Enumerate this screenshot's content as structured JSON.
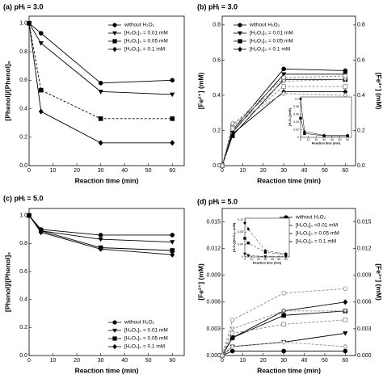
{
  "chart_data": [
    {
      "type": "line",
      "title": "(a) pHᵢ = 3.0",
      "xlabel": "Reaction time (min)",
      "ylabel": "[Phenol]/[Phenol]₀",
      "xlim": [
        0,
        65
      ],
      "xticks": [
        0,
        10,
        20,
        30,
        40,
        50,
        60
      ],
      "ylim": [
        0,
        1.05
      ],
      "yticks": [
        {
          "value": 0,
          "label": "0.0"
        },
        0.2,
        0.4,
        0.6,
        0.8,
        {
          "value": 1,
          "label": "1.0"
        }
      ],
      "legend": "upper right",
      "x": [
        0,
        5,
        30,
        60
      ],
      "series": [
        {
          "name": "without H₂O₂",
          "marker": "circle",
          "color": "#000",
          "linestyle": "solid",
          "values": [
            1,
            0.93,
            0.58,
            0.6
          ]
        },
        {
          "name": "[H₂O₂]₀ = 0.01 mM",
          "marker": "triangle",
          "color": "#000",
          "linestyle": "solid",
          "values": [
            1,
            0.86,
            0.52,
            0.5
          ]
        },
        {
          "name": "[H₂O₂]₀ = 0.05 mM",
          "marker": "square",
          "color": "#000",
          "linestyle": "dashed",
          "values": [
            1,
            0.53,
            0.33,
            0.33
          ]
        },
        {
          "name": "[H₂O₂]₀ = 0.1 mM",
          "marker": "diamond",
          "color": "#000",
          "linestyle": "solid",
          "values": [
            1,
            0.38,
            0.16,
            0.16
          ]
        }
      ]
    },
    {
      "type": "line",
      "title": "(b) pHᵢ = 3.0",
      "xlabel": "Reaction time (min)",
      "ylabel": "[Fe²⁺] (mM)",
      "y2label": "[Fe³⁺] (mM)",
      "xlim": [
        0,
        65
      ],
      "xticks": [
        0,
        10,
        20,
        30,
        40,
        50,
        60
      ],
      "ylim": [
        0,
        0.85
      ],
      "yticks": [
        {
          "value": 0,
          "label": "0.0"
        },
        0.2,
        0.4,
        0.6,
        0.8
      ],
      "y2lim": [
        0,
        0.85
      ],
      "y2ticks": [
        {
          "value": 0,
          "label": "0.0"
        },
        0.2,
        0.4,
        0.6,
        0.8
      ],
      "legend": "upper left",
      "x": [
        0,
        5,
        30,
        60
      ],
      "series": [
        {
          "name": "without H₂O₂",
          "marker": "circle",
          "color": "#000",
          "linestyle": "solid",
          "values": [
            0,
            0.2,
            0.55,
            0.54
          ]
        },
        {
          "name": "[H₂O₂]₀ = 0.01 mM",
          "marker": "triangle",
          "color": "#000",
          "linestyle": "solid",
          "values": [
            0,
            0.19,
            0.52,
            0.52
          ]
        },
        {
          "name": "[H₂O₂]₀ = 0.05 mM",
          "marker": "square",
          "color": "#000",
          "linestyle": "solid",
          "values": [
            0,
            0.17,
            0.49,
            0.49
          ]
        },
        {
          "name": "[H₂O₂]₀ = 0.1 mM",
          "marker": "diamond",
          "color": "#000",
          "linestyle": "solid",
          "values": [
            0,
            0.18,
            0.42,
            0.42
          ]
        },
        {
          "axis": "y2",
          "marker": "circle-open",
          "color": "#888",
          "linestyle": "dashed",
          "values": [
            0,
            0.23,
            0.5,
            0.51
          ]
        },
        {
          "axis": "y2",
          "marker": "triangle-open",
          "color": "#888",
          "linestyle": "dashed",
          "values": [
            0,
            0.22,
            0.48,
            0.49
          ]
        },
        {
          "axis": "y2",
          "marker": "square-open",
          "color": "#888",
          "linestyle": "dashed",
          "values": [
            0,
            0.21,
            0.45,
            0.45
          ]
        },
        {
          "axis": "y2",
          "marker": "diamond-open",
          "color": "#888",
          "linestyle": "dashed",
          "values": [
            0,
            0.24,
            0.41,
            0.4
          ]
        }
      ]
    },
    {
      "type": "line",
      "title": "(c) pHᵢ = 5.0",
      "xlabel": "Reaction time (min)",
      "ylabel": "[Phenol]/[Phenol]₀",
      "xlim": [
        0,
        65
      ],
      "xticks": [
        0,
        10,
        20,
        30,
        40,
        50,
        60
      ],
      "ylim": [
        0,
        1.05
      ],
      "yticks": [
        {
          "value": 0,
          "label": "0.0"
        },
        0.2,
        0.4,
        0.6,
        0.8,
        {
          "value": 1,
          "label": "1.0"
        }
      ],
      "legend": "lower right",
      "x": [
        0,
        5,
        30,
        60
      ],
      "series": [
        {
          "name": "without H₂O₂",
          "marker": "circle",
          "color": "#000",
          "linestyle": "solid",
          "values": [
            1,
            0.9,
            0.86,
            0.86
          ]
        },
        {
          "name": "[H₂O₂]₀ = 0.01 mM",
          "marker": "triangle",
          "color": "#000",
          "linestyle": "solid",
          "values": [
            1,
            0.89,
            0.83,
            0.81
          ]
        },
        {
          "name": "[H₂O₂]₀ = 0.05 mM",
          "marker": "square",
          "color": "#000",
          "linestyle": "solid",
          "values": [
            1,
            0.89,
            0.77,
            0.75
          ]
        },
        {
          "name": "[H₂O₂]₀ = 0.1 mM",
          "marker": "diamond",
          "color": "#000",
          "linestyle": "solid",
          "values": [
            1,
            0.88,
            0.76,
            0.72
          ]
        }
      ]
    },
    {
      "type": "line",
      "title": "(d) pHᵢ = 5.0",
      "xlabel": "Reaction time (min)",
      "ylabel": "[Fe²⁺] (mM)",
      "y2label": "[Fe³⁺] (mM)",
      "xlim": [
        0,
        65
      ],
      "xticks": [
        0,
        10,
        20,
        30,
        40,
        50,
        60
      ],
      "ylim": [
        0,
        0.0165
      ],
      "yticks": [
        {
          "value": 0,
          "label": "0.000"
        },
        0.003,
        0.006,
        0.009,
        0.012,
        0.015
      ],
      "y2lim": [
        0,
        0.0165
      ],
      "y2ticks": [
        {
          "value": 0,
          "label": "0.000"
        },
        0.003,
        0.006,
        0.009,
        0.012,
        0.015
      ],
      "legend": "upper right",
      "x": [
        0,
        5,
        30,
        60
      ],
      "series": [
        {
          "name": "without H₂O₂",
          "marker": "circle",
          "color": "#000",
          "linestyle": "solid",
          "values": [
            0,
            0.0005,
            0.0005,
            0.0005
          ]
        },
        {
          "name": "[H₂O₂]₀ =0.01 mM",
          "marker": "triangle",
          "color": "#000",
          "linestyle": "solid",
          "values": [
            0,
            0.001,
            0.0015,
            0.0025
          ]
        },
        {
          "name": "[H₂O₂]₀ = 0.05 mM",
          "marker": "square",
          "color": "#000",
          "linestyle": "solid",
          "values": [
            0,
            0.002,
            0.0045,
            0.005
          ]
        },
        {
          "name": "[H₂O₂]₀ = 0.1 mM",
          "marker": "diamond",
          "color": "#000",
          "linestyle": "solid",
          "values": [
            0,
            0.002,
            0.005,
            0.006
          ]
        },
        {
          "axis": "y2",
          "marker": "circle-open",
          "color": "#888",
          "linestyle": "dashed",
          "values": [
            0,
            0.004,
            0.007,
            0.0075
          ]
        },
        {
          "axis": "y2",
          "marker": "triangle-open",
          "color": "#888",
          "linestyle": "dashed",
          "values": [
            0,
            0.003,
            0.005,
            0.005
          ]
        },
        {
          "axis": "y2",
          "marker": "square-open",
          "color": "#888",
          "linestyle": "dashed",
          "values": [
            0,
            0.0025,
            0.0035,
            0.004
          ]
        },
        {
          "axis": "y2",
          "marker": "diamond-open",
          "color": "#888",
          "linestyle": "dashed",
          "values": [
            0,
            0.001,
            0.0015,
            0.001
          ]
        }
      ]
    },
    {
      "type": "line",
      "xlabel": "Reaction time (min)",
      "ylabel": "[H₂O₂] (mM)",
      "xlim": [
        0,
        65
      ],
      "xticks": [
        0,
        10,
        20,
        30,
        40,
        50,
        60
      ],
      "ylim": [
        0,
        0.105
      ],
      "yticks": [
        0,
        0.02,
        0.04,
        0.06,
        0.08,
        0.1
      ],
      "x": [
        0,
        5,
        30,
        60
      ],
      "series": [
        {
          "marker": "diamond",
          "color": "#000",
          "linestyle": "solid",
          "values": [
            0.1,
            0.015,
            0.005,
            0.005
          ]
        },
        {
          "marker": "square",
          "color": "#000",
          "linestyle": "solid",
          "values": [
            0.05,
            0.01,
            0.004,
            0.004
          ]
        }
      ]
    },
    {
      "type": "line",
      "xlabel": "Reaction time (min)",
      "ylabel": "[H₂O₂]/[H₂O₂]₀ (mM)",
      "xlim": [
        0,
        65
      ],
      "xticks": [
        0,
        10,
        20,
        30,
        40,
        50,
        60
      ],
      "ylim": [
        0,
        0.125
      ],
      "yticks": [
        0,
        0.04,
        0.08,
        0.12
      ],
      "x": [
        0,
        5,
        30,
        60
      ],
      "series": [
        {
          "marker": "diamond",
          "color": "#000",
          "linestyle": "dashed",
          "values": [
            0.11,
            0.09,
            0.02,
            0.01
          ]
        },
        {
          "marker": "square",
          "color": "#000",
          "linestyle": "dashed",
          "values": [
            0.06,
            0.045,
            0.015,
            0.008
          ]
        },
        {
          "marker": "triangle",
          "color": "#000",
          "linestyle": "dashed",
          "values": [
            0.01,
            0.005,
            0.001,
            0.001
          ]
        }
      ]
    }
  ]
}
